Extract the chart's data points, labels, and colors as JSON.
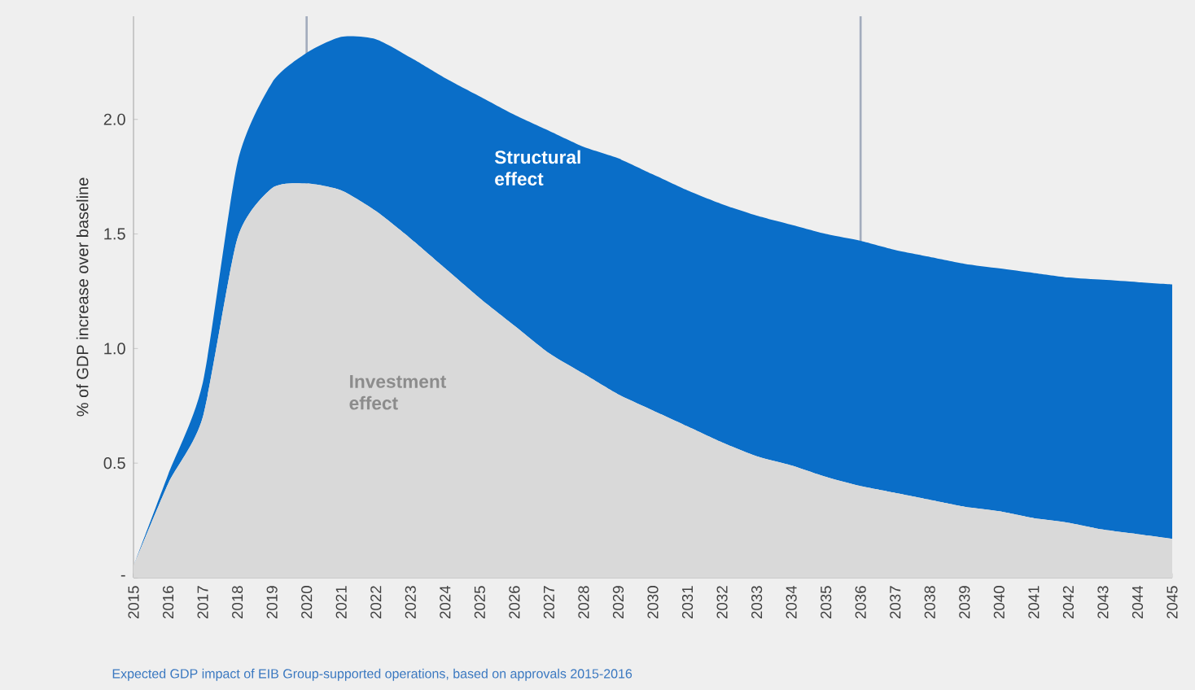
{
  "chart_data": {
    "type": "area",
    "stacked": true,
    "ylabel": "% of GDP increase over baseline",
    "categories": [
      "2015",
      "2016",
      "2017",
      "2018",
      "2019",
      "2020",
      "2021",
      "2022",
      "2023",
      "2024",
      "2025",
      "2026",
      "2027",
      "2028",
      "2029",
      "2030",
      "2031",
      "2032",
      "2033",
      "2034",
      "2035",
      "2036",
      "2037",
      "2038",
      "2039",
      "2040",
      "2041",
      "2042",
      "2043",
      "2044",
      "2045"
    ],
    "series": [
      {
        "name": "Investment effect",
        "color": "#d9d9d9",
        "values": [
          0.05,
          0.41,
          0.7,
          1.48,
          1.7,
          1.72,
          1.69,
          1.6,
          1.48,
          1.35,
          1.22,
          1.1,
          0.98,
          0.89,
          0.8,
          0.73,
          0.66,
          0.59,
          0.53,
          0.49,
          0.44,
          0.4,
          0.37,
          0.34,
          0.31,
          0.29,
          0.26,
          0.24,
          0.21,
          0.19,
          0.17
        ]
      },
      {
        "name": "Structural effect",
        "color": "#0a6ec8",
        "values": [
          0.0,
          0.04,
          0.15,
          0.33,
          0.46,
          0.57,
          0.67,
          0.75,
          0.79,
          0.83,
          0.88,
          0.92,
          0.97,
          0.99,
          1.03,
          1.03,
          1.03,
          1.04,
          1.05,
          1.05,
          1.06,
          1.07,
          1.06,
          1.06,
          1.06,
          1.06,
          1.07,
          1.07,
          1.09,
          1.1,
          1.11
        ]
      }
    ],
    "ylim": [
      0,
      2.45
    ],
    "yticks": [
      {
        "value": 0,
        "label": "-"
      },
      {
        "value": 0.5,
        "label": "0.5"
      },
      {
        "value": 1.0,
        "label": "1.0"
      },
      {
        "value": 1.5,
        "label": "1.5"
      },
      {
        "value": 2.0,
        "label": "2.0"
      }
    ],
    "ref_lines": [
      {
        "axis": "x",
        "value": "2020",
        "color": "#a3acbd"
      },
      {
        "axis": "x",
        "value": "2036",
        "color": "#a3acbd"
      }
    ],
    "annotations": [
      "Expected GDP impact of EIB Group-supported operations, based on approvals 2015-2016"
    ],
    "legend": false,
    "grid": false
  }
}
